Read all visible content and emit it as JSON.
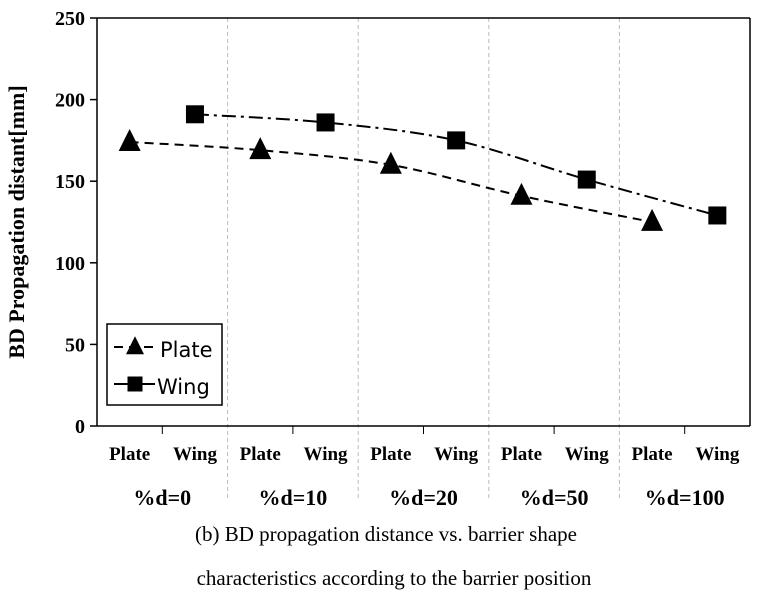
{
  "chart_data": {
    "type": "line",
    "ylabel": "BD Propagation distant[mm]",
    "xlabel": "",
    "ylim": [
      0,
      250
    ],
    "yticks": [
      0,
      50,
      100,
      150,
      200,
      250
    ],
    "categories": [
      "Plate",
      "Wing",
      "Plate",
      "Wing",
      "Plate",
      "Wing",
      "Plate",
      "Wing",
      "Plate",
      "Wing"
    ],
    "groups": [
      "%d=0",
      "%d=10",
      "%d=20",
      "%d=50",
      "%d=100"
    ],
    "series": [
      {
        "name": "Plate",
        "marker": "triangle",
        "dash": "dashed",
        "x": [
          1,
          3,
          5,
          7,
          9
        ],
        "values": [
          174,
          169,
          160,
          141,
          125
        ]
      },
      {
        "name": "Wing",
        "marker": "square",
        "dash": "dash-dot",
        "x": [
          2,
          4,
          6,
          8,
          10
        ],
        "values": [
          191,
          186,
          175,
          151,
          129
        ]
      }
    ],
    "legend": "bottom-left",
    "grid": "vertical group separators (dashed)"
  },
  "caption": {
    "line1": "(b) BD propagation distance vs. barrier shape",
    "line2": "characteristics according to the barrier position"
  }
}
